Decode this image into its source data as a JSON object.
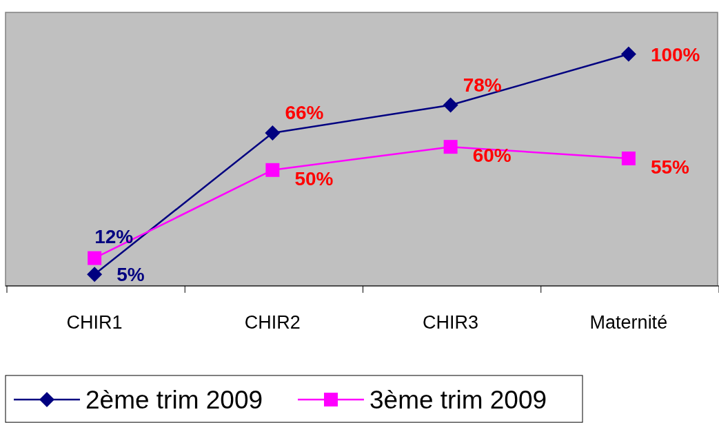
{
  "chart_data": {
    "type": "line",
    "categories": [
      "CHIR1",
      "CHIR2",
      "CHIR3",
      "Maternité"
    ],
    "series": [
      {
        "name": "2ème trim 2009",
        "color": "#000080",
        "values": [
          5,
          66,
          78,
          100
        ],
        "value_labels": [
          "5%",
          "66%",
          "78%",
          "100%"
        ],
        "marker": "diamond"
      },
      {
        "name": "3ème trim 2009",
        "color": "#ff00ff",
        "values": [
          12,
          50,
          60,
          55
        ],
        "value_labels": [
          "12%",
          "50%",
          "60%",
          "55%"
        ],
        "marker": "square"
      }
    ],
    "tick_labels": "x",
    "legend": "bottom"
  }
}
